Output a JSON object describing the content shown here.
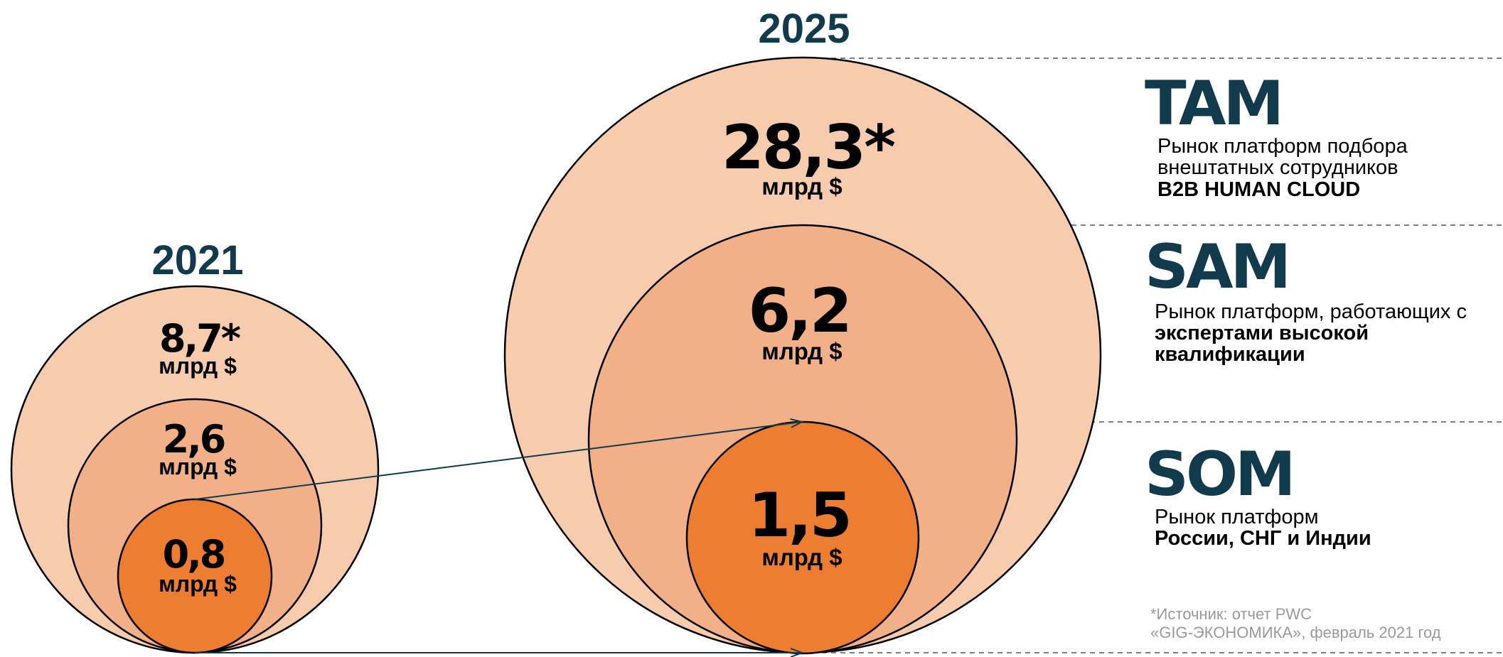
{
  "years": {
    "left": "2021",
    "right": "2025"
  },
  "markets_2021": {
    "tam": {
      "value": "8,7*",
      "unit": "млрд $"
    },
    "sam": {
      "value": "2,6",
      "unit": "млрд $"
    },
    "som": {
      "value": "0,8",
      "unit": "млрд $"
    }
  },
  "markets_2025": {
    "tam": {
      "value": "28,3*",
      "unit": "млрд $"
    },
    "sam": {
      "value": "6,2",
      "unit": "млрд $"
    },
    "som": {
      "value": "1,5",
      "unit": "млрд $"
    }
  },
  "legend": {
    "tam": {
      "abbr": "TAM",
      "line1": "Рынок платформ подбора",
      "line2": "внештатных сотрудников",
      "line3": "B2B HUMAN CLOUD"
    },
    "sam": {
      "abbr": "SAM",
      "line1": "Рынок платформ, работающих с",
      "line2": "экспертами высокой",
      "line3": "квалификации"
    },
    "som": {
      "abbr": "SOM",
      "line1": "Рынок платформ",
      "line2": "России, СНГ и Индии"
    }
  },
  "source_note": {
    "line1": "*Источник: отчет PWC",
    "line2": "«GIG-ЭКОНОМИКА», февраль 2021 год"
  },
  "colors": {
    "tam": "#f7cbad",
    "sam": "#f2b088",
    "som": "#ed7d31",
    "heading": "#123a4d"
  }
}
